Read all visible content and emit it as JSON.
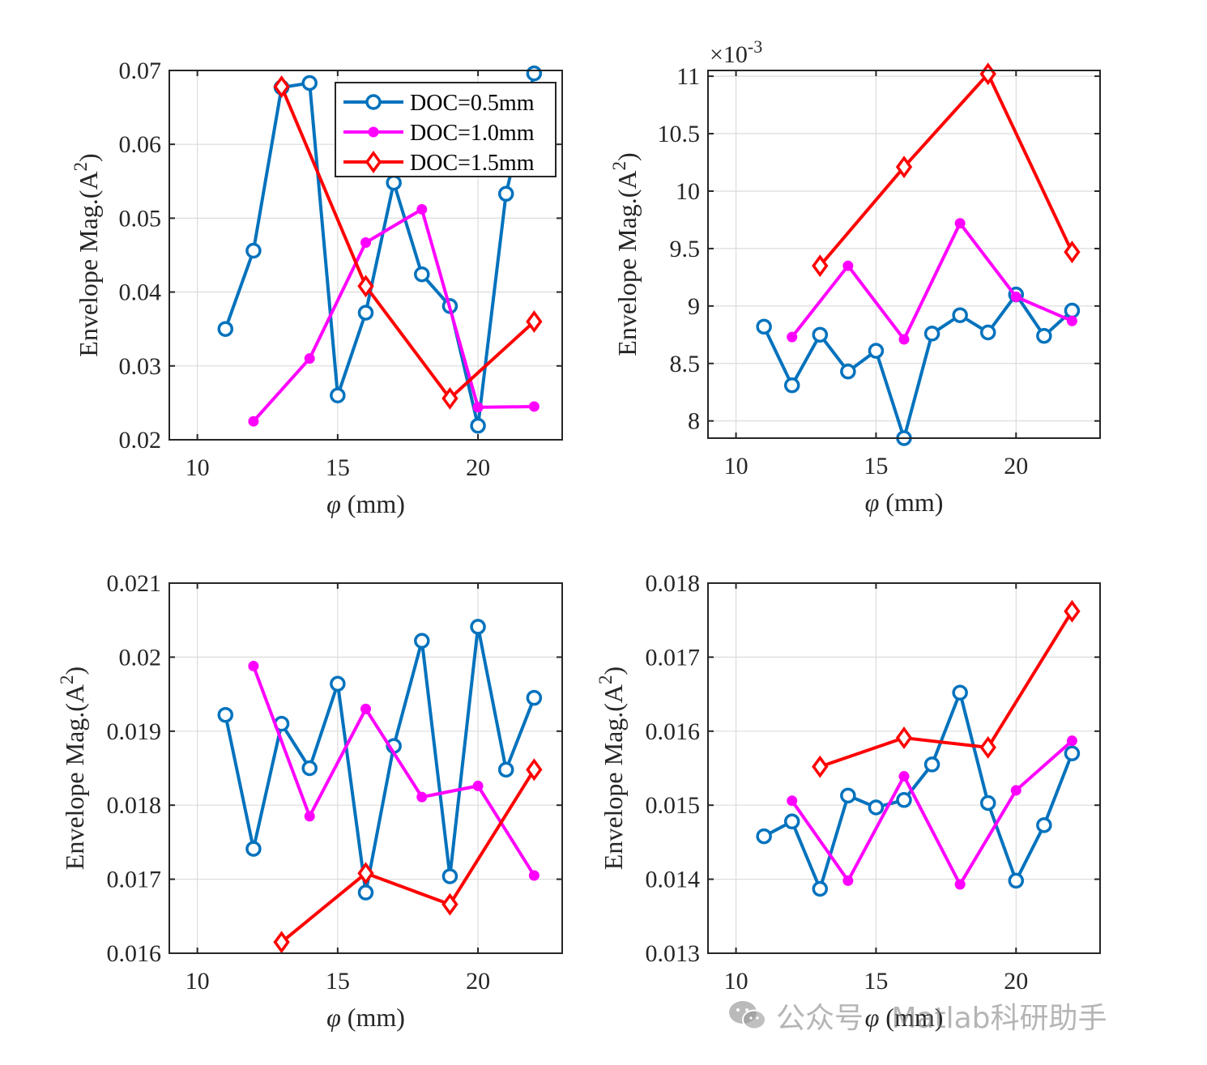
{
  "colors": {
    "series": [
      "#0072BD",
      "#FF00FF",
      "#FF0000"
    ],
    "grid": "#dcdcdc",
    "axis": "#262626"
  },
  "legend": {
    "entries": [
      "DOC=0.5mm",
      "DOC=1.0mm",
      "DOC=1.5mm"
    ],
    "markers": [
      "circle",
      "dot",
      "diamond"
    ],
    "placement": "top-right of first subplot"
  },
  "watermark": {
    "text": "公众号 · Matlab科研助手",
    "icon": "wechat-icon"
  },
  "chart_data": [
    {
      "type": "line",
      "xlabel": "φ (mm)",
      "ylabel": "Envelope Mag.(A^2)",
      "xlim": [
        9,
        23
      ],
      "ylim": [
        0.02,
        0.07
      ],
      "xticks": [
        10,
        15,
        20
      ],
      "yticks": [
        0.02,
        0.03,
        0.04,
        0.05,
        0.06,
        0.07
      ],
      "ytick_labels": [
        "0.02",
        "0.03",
        "0.04",
        "0.05",
        "0.06",
        "0.07"
      ],
      "exponent": "",
      "grid": true,
      "series": [
        {
          "name": "DOC=0.5mm",
          "x": [
            11,
            12,
            13,
            14,
            15,
            16,
            17,
            18,
            19,
            20,
            21,
            22
          ],
          "values": [
            0.035,
            0.0456,
            0.0677,
            0.0683,
            0.026,
            0.0372,
            0.0548,
            0.0424,
            0.0381,
            0.0219,
            0.0533,
            0.0696
          ]
        },
        {
          "name": "DOC=1.0mm",
          "x": [
            12,
            14,
            16,
            18,
            20,
            22
          ],
          "values": [
            0.0225,
            0.031,
            0.0467,
            0.0512,
            0.0244,
            0.0245
          ]
        },
        {
          "name": "DOC=1.5mm",
          "x": [
            13,
            16,
            19,
            22
          ],
          "values": [
            0.0678,
            0.0408,
            0.0256,
            0.036
          ]
        }
      ]
    },
    {
      "type": "line",
      "xlabel": "φ (mm)",
      "ylabel": "Envelope Mag.(A^2)",
      "xlim": [
        9,
        23
      ],
      "ylim": [
        7.85,
        11.05
      ],
      "xticks": [
        10,
        15,
        20
      ],
      "yticks": [
        8,
        8.5,
        9,
        9.5,
        10,
        10.5,
        11
      ],
      "ytick_labels": [
        "8",
        "8.5",
        "9",
        "9.5",
        "10",
        "10.5",
        "11"
      ],
      "exponent": "×10^-3",
      "grid": true,
      "series": [
        {
          "name": "DOC=0.5mm",
          "x": [
            11,
            12,
            13,
            14,
            15,
            16,
            17,
            18,
            19,
            20,
            21,
            22
          ],
          "values": [
            8.82,
            8.31,
            8.75,
            8.43,
            8.61,
            7.85,
            8.76,
            8.92,
            8.77,
            9.1,
            8.74,
            8.96
          ]
        },
        {
          "name": "DOC=1.0mm",
          "x": [
            12,
            14,
            16,
            18,
            20,
            22
          ],
          "values": [
            8.73,
            9.35,
            8.71,
            9.72,
            9.08,
            8.87
          ]
        },
        {
          "name": "DOC=1.5mm",
          "x": [
            13,
            16,
            19,
            22
          ],
          "values": [
            9.35,
            10.21,
            11.02,
            9.47
          ]
        }
      ]
    },
    {
      "type": "line",
      "xlabel": "φ (mm)",
      "ylabel": "Envelope Mag.(A^2)",
      "xlim": [
        9,
        23
      ],
      "ylim": [
        0.016,
        0.021
      ],
      "xticks": [
        10,
        15,
        20
      ],
      "yticks": [
        0.016,
        0.017,
        0.018,
        0.019,
        0.02,
        0.021
      ],
      "ytick_labels": [
        "0.016",
        "0.017",
        "0.018",
        "0.019",
        "0.02",
        "0.021"
      ],
      "exponent": "",
      "grid": true,
      "series": [
        {
          "name": "DOC=0.5mm",
          "x": [
            11,
            12,
            13,
            14,
            15,
            16,
            17,
            18,
            19,
            20,
            21,
            22
          ],
          "values": [
            0.01922,
            0.01741,
            0.0191,
            0.0185,
            0.01964,
            0.01682,
            0.0188,
            0.02022,
            0.01704,
            0.02041,
            0.01848,
            0.01945
          ]
        },
        {
          "name": "DOC=1.0mm",
          "x": [
            12,
            14,
            16,
            18,
            20,
            22
          ],
          "values": [
            0.01988,
            0.01785,
            0.0193,
            0.01811,
            0.01826,
            0.01705
          ]
        },
        {
          "name": "DOC=1.5mm",
          "x": [
            13,
            16,
            19,
            22
          ],
          "values": [
            0.01615,
            0.01708,
            0.01666,
            0.01848
          ]
        }
      ]
    },
    {
      "type": "line",
      "xlabel": "φ (mm)",
      "ylabel": "Envelope Mag.(A^2)",
      "xlim": [
        9,
        23
      ],
      "ylim": [
        0.013,
        0.018
      ],
      "xticks": [
        10,
        15,
        20
      ],
      "yticks": [
        0.013,
        0.014,
        0.015,
        0.016,
        0.017,
        0.018
      ],
      "ytick_labels": [
        "0.013",
        "0.014",
        "0.015",
        "0.016",
        "0.017",
        "0.018"
      ],
      "exponent": "",
      "grid": true,
      "series": [
        {
          "name": "DOC=0.5mm",
          "x": [
            11,
            12,
            13,
            14,
            15,
            16,
            17,
            18,
            19,
            20,
            21,
            22
          ],
          "values": [
            0.01458,
            0.01478,
            0.01387,
            0.01513,
            0.01497,
            0.01507,
            0.01555,
            0.01652,
            0.01503,
            0.01398,
            0.01473,
            0.0157
          ]
        },
        {
          "name": "DOC=1.0mm",
          "x": [
            12,
            14,
            16,
            18,
            20,
            22
          ],
          "values": [
            0.01506,
            0.01398,
            0.01539,
            0.01393,
            0.0152,
            0.01587
          ]
        },
        {
          "name": "DOC=1.5mm",
          "x": [
            13,
            16,
            19,
            22
          ],
          "values": [
            0.01552,
            0.01591,
            0.01578,
            0.01762
          ]
        }
      ]
    }
  ]
}
